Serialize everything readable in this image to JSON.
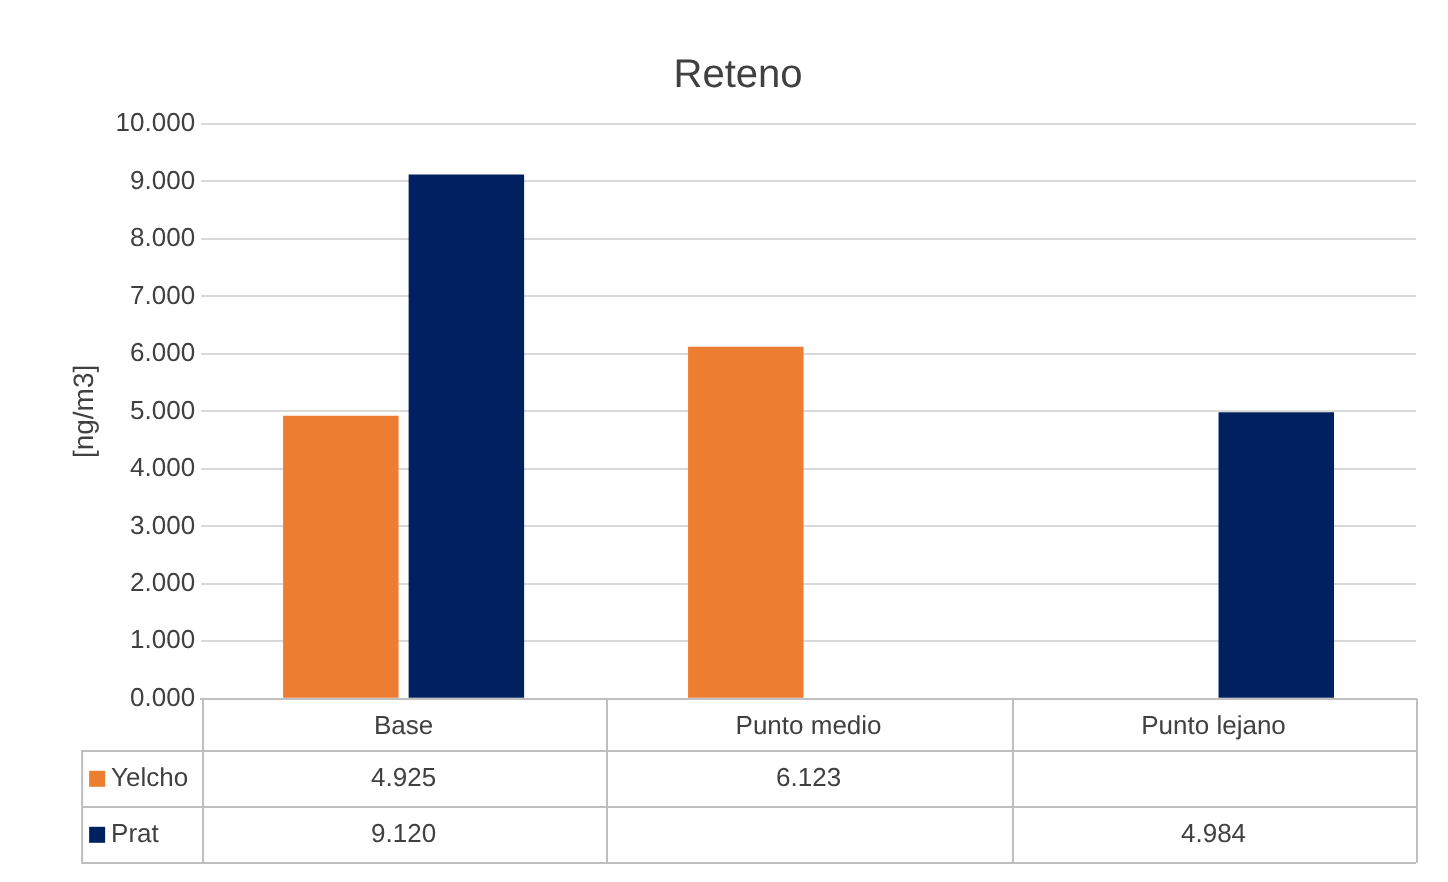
{
  "chart_data": {
    "type": "bar",
    "title": "Reteno",
    "ylabel": "[ng/m3]",
    "categories": [
      "Base",
      "Punto medio",
      "Punto lejano"
    ],
    "series": [
      {
        "name": "Yelcho",
        "color": "#ed7d31",
        "values": [
          4.925,
          6.123,
          null
        ],
        "value_labels": [
          "4.925",
          "6.123",
          null
        ]
      },
      {
        "name": "Prat",
        "color": "#002060",
        "values": [
          9.12,
          null,
          4.984
        ],
        "value_labels": [
          "9.120",
          null,
          "4.984"
        ]
      }
    ],
    "ylim": [
      0,
      10
    ],
    "yticks": [
      {
        "value": 0,
        "label": "0.000"
      },
      {
        "value": 1,
        "label": "1.000"
      },
      {
        "value": 2,
        "label": "2.000"
      },
      {
        "value": 3,
        "label": "3.000"
      },
      {
        "value": 4,
        "label": "4.000"
      },
      {
        "value": 5,
        "label": "5.000"
      },
      {
        "value": 6,
        "label": "6.000"
      },
      {
        "value": 7,
        "label": "7.000"
      },
      {
        "value": 8,
        "label": "8.000"
      },
      {
        "value": 9,
        "label": "9.000"
      },
      {
        "value": 10,
        "label": "10.000"
      }
    ],
    "grid": "y",
    "legend": "bottom"
  }
}
